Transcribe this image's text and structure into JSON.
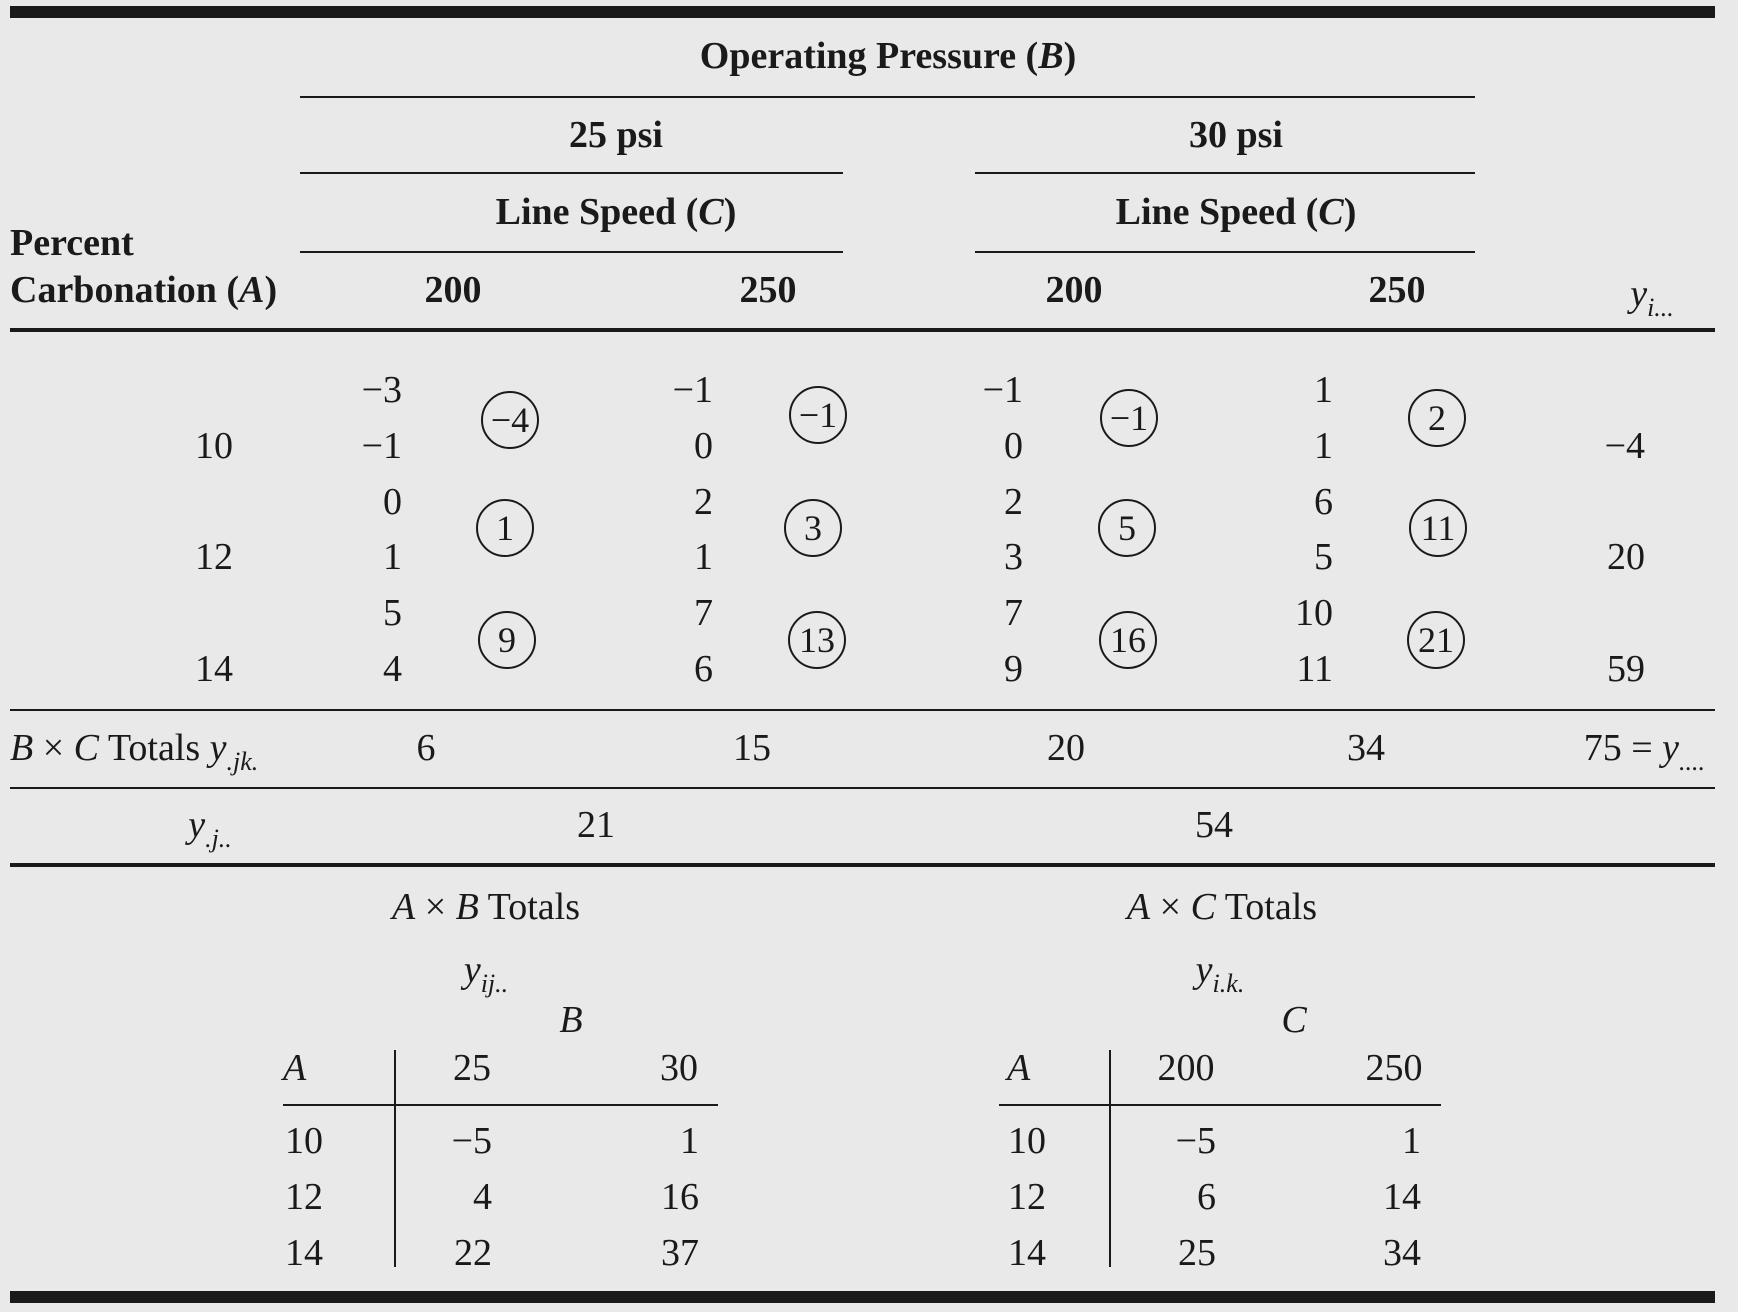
{
  "header": {
    "operating_pressure": "Operating Pressure (B)",
    "pressure_levels": [
      "25 psi",
      "30 psi"
    ],
    "line_speed_label": "Line Speed (C)",
    "percent_label": "Percent",
    "carbonation_label": "Carbonation (A)",
    "speed_levels": [
      "200",
      "250",
      "200",
      "250"
    ],
    "yi_label": "y",
    "yi_sub": "i..."
  },
  "rows": [
    {
      "level": "10",
      "total": "−4",
      "cells": [
        {
          "obs": [
            "−3",
            "−1"
          ],
          "sum": "−4"
        },
        {
          "obs": [
            "−1",
            "0"
          ],
          "sum": "−1"
        },
        {
          "obs": [
            "−1",
            "0"
          ],
          "sum": "−1"
        },
        {
          "obs": [
            "1",
            "1"
          ],
          "sum": "2"
        }
      ]
    },
    {
      "level": "12",
      "total": "20",
      "cells": [
        {
          "obs": [
            "0",
            "1"
          ],
          "sum": "1"
        },
        {
          "obs": [
            "2",
            "1"
          ],
          "sum": "3"
        },
        {
          "obs": [
            "2",
            "3"
          ],
          "sum": "5"
        },
        {
          "obs": [
            "6",
            "5"
          ],
          "sum": "11"
        }
      ]
    },
    {
      "level": "14",
      "total": "59",
      "cells": [
        {
          "obs": [
            "5",
            "4"
          ],
          "sum": "9"
        },
        {
          "obs": [
            "7",
            "6"
          ],
          "sum": "13"
        },
        {
          "obs": [
            "7",
            "9"
          ],
          "sum": "16"
        },
        {
          "obs": [
            "10",
            "11"
          ],
          "sum": "21"
        }
      ]
    }
  ],
  "bc_totals": {
    "label": "B × C Totals y",
    "label_sub": ".jk.",
    "values": [
      "6",
      "15",
      "20",
      "34"
    ],
    "grand": "75 = y",
    "grand_sub": "...."
  },
  "yj_totals": {
    "label": "y",
    "label_sub": ".j..",
    "values": [
      "21",
      "54"
    ]
  },
  "ab_table": {
    "title": "A × B Totals",
    "symbol": "y",
    "symbol_sub": "ij..",
    "factor": "B",
    "row_factor": "A",
    "columns": [
      "25",
      "30"
    ],
    "rows": [
      {
        "level": "10",
        "values": [
          "−5",
          "1"
        ]
      },
      {
        "level": "12",
        "values": [
          "4",
          "16"
        ]
      },
      {
        "level": "14",
        "values": [
          "22",
          "37"
        ]
      }
    ]
  },
  "ac_table": {
    "title": "A × C Totals",
    "symbol": "y",
    "symbol_sub": "i.k.",
    "factor": "C",
    "row_factor": "A",
    "columns": [
      "200",
      "250"
    ],
    "rows": [
      {
        "level": "10",
        "values": [
          "−5",
          "1"
        ]
      },
      {
        "level": "12",
        "values": [
          "6",
          "14"
        ]
      },
      {
        "level": "14",
        "values": [
          "25",
          "34"
        ]
      }
    ]
  }
}
